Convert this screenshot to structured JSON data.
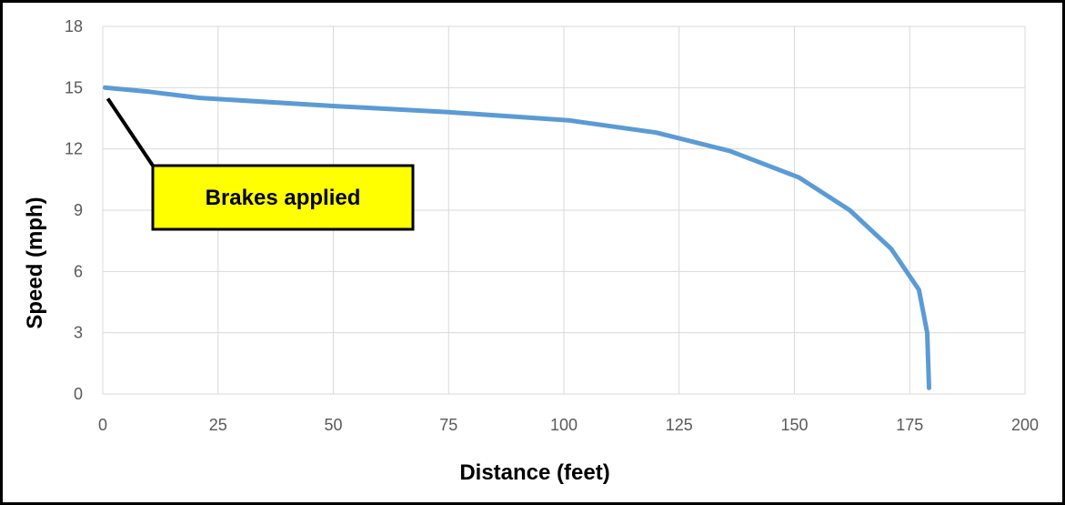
{
  "chart_data": {
    "type": "line",
    "title": "",
    "xlabel": "Distance (feet)",
    "ylabel": "Speed (mph)",
    "xlim": [
      0,
      200
    ],
    "ylim": [
      0,
      18
    ],
    "x_ticks": [
      "0",
      "25",
      "50",
      "75",
      "100",
      "125",
      "150",
      "175",
      "200"
    ],
    "y_ticks": [
      "0",
      "3",
      "6",
      "9",
      "12",
      "15",
      "18"
    ],
    "grid": true,
    "legend": "none",
    "series": [
      {
        "color": "#5B9BD5",
        "x": [
          0.5,
          10,
          21,
          50,
          75,
          101,
          120,
          136,
          151,
          162,
          171,
          177,
          178.8,
          179.2
        ],
        "y": [
          15.0,
          14.8,
          14.5,
          14.1,
          13.8,
          13.4,
          12.8,
          11.9,
          10.6,
          9.0,
          7.1,
          5.1,
          3.0,
          0.3
        ]
      }
    ],
    "annotations": [
      {
        "text": "Brakes applied",
        "x": 0.5,
        "y": 15.0,
        "box_color": "#FFFF00"
      }
    ]
  }
}
